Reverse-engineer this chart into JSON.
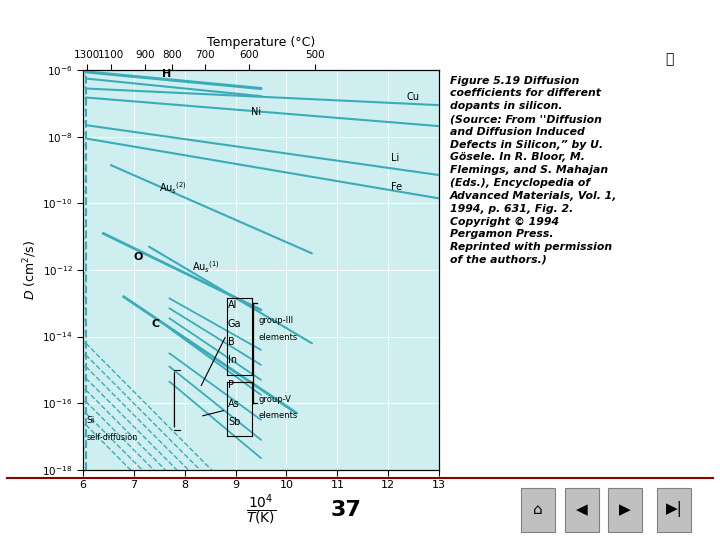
{
  "bg_color": "#ceeef0",
  "line_color": "#3aacb8",
  "xlim": [
    6,
    13
  ],
  "ylim": [
    -18,
    -6
  ],
  "top_temps": [
    "1300",
    "1100",
    "900",
    "800",
    "700",
    "600",
    "500"
  ],
  "top_pos": [
    6.08,
    6.56,
    7.22,
    7.75,
    8.4,
    9.27,
    10.56
  ],
  "page_number": "37",
  "caption": "Figure 5.19 Diffusion\ncoefficients for different\ndopants in silicon.\n(Source: From ''Diffusion\nand Diffusion Induced\nDefects in Silicon,” by U.\nGösele. In R. Bloor, M.\nFlemings, and S. Mahajan\n(Eds.), Encyclopedia of\nAdvanced Materials, Vol. 1,\n1994, p. 631, Fig. 2.\nCopyright © 1994\nPergamon Press.\nReprinted with permission\nof the authors.)"
}
